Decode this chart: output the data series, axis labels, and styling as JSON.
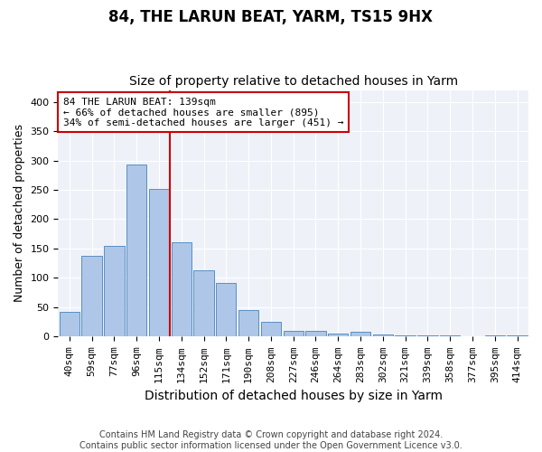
{
  "title": "84, THE LARUN BEAT, YARM, TS15 9HX",
  "subtitle": "Size of property relative to detached houses in Yarm",
  "xlabel": "Distribution of detached houses by size in Yarm",
  "ylabel": "Number of detached properties",
  "footer_line1": "Contains HM Land Registry data © Crown copyright and database right 2024.",
  "footer_line2": "Contains public sector information licensed under the Open Government Licence v3.0.",
  "categories": [
    "40sqm",
    "59sqm",
    "77sqm",
    "96sqm",
    "115sqm",
    "134sqm",
    "152sqm",
    "171sqm",
    "190sqm",
    "208sqm",
    "227sqm",
    "246sqm",
    "264sqm",
    "283sqm",
    "302sqm",
    "321sqm",
    "339sqm",
    "358sqm",
    "377sqm",
    "395sqm",
    "414sqm"
  ],
  "values": [
    42,
    138,
    155,
    293,
    252,
    160,
    113,
    91,
    46,
    25,
    10,
    10,
    6,
    9,
    4,
    2,
    2,
    2,
    1,
    2,
    2
  ],
  "bar_color": "#aec6e8",
  "bar_edge_color": "#5a8fc2",
  "annotation_line1": "84 THE LARUN BEAT: 139sqm",
  "annotation_line2": "← 66% of detached houses are smaller (895)",
  "annotation_line3": "34% of semi-detached houses are larger (451) →",
  "annotation_box_color": "#ffffff",
  "annotation_box_edge_color": "#cc0000",
  "vline_x": 4.5,
  "vline_color": "#cc0000",
  "background_color": "#eef2f8",
  "ylim": [
    0,
    420
  ],
  "yticks": [
    0,
    50,
    100,
    150,
    200,
    250,
    300,
    350,
    400
  ],
  "title_fontsize": 12,
  "subtitle_fontsize": 10,
  "xlabel_fontsize": 10,
  "ylabel_fontsize": 9,
  "tick_fontsize": 8,
  "annotation_fontsize": 8,
  "footer_fontsize": 7
}
